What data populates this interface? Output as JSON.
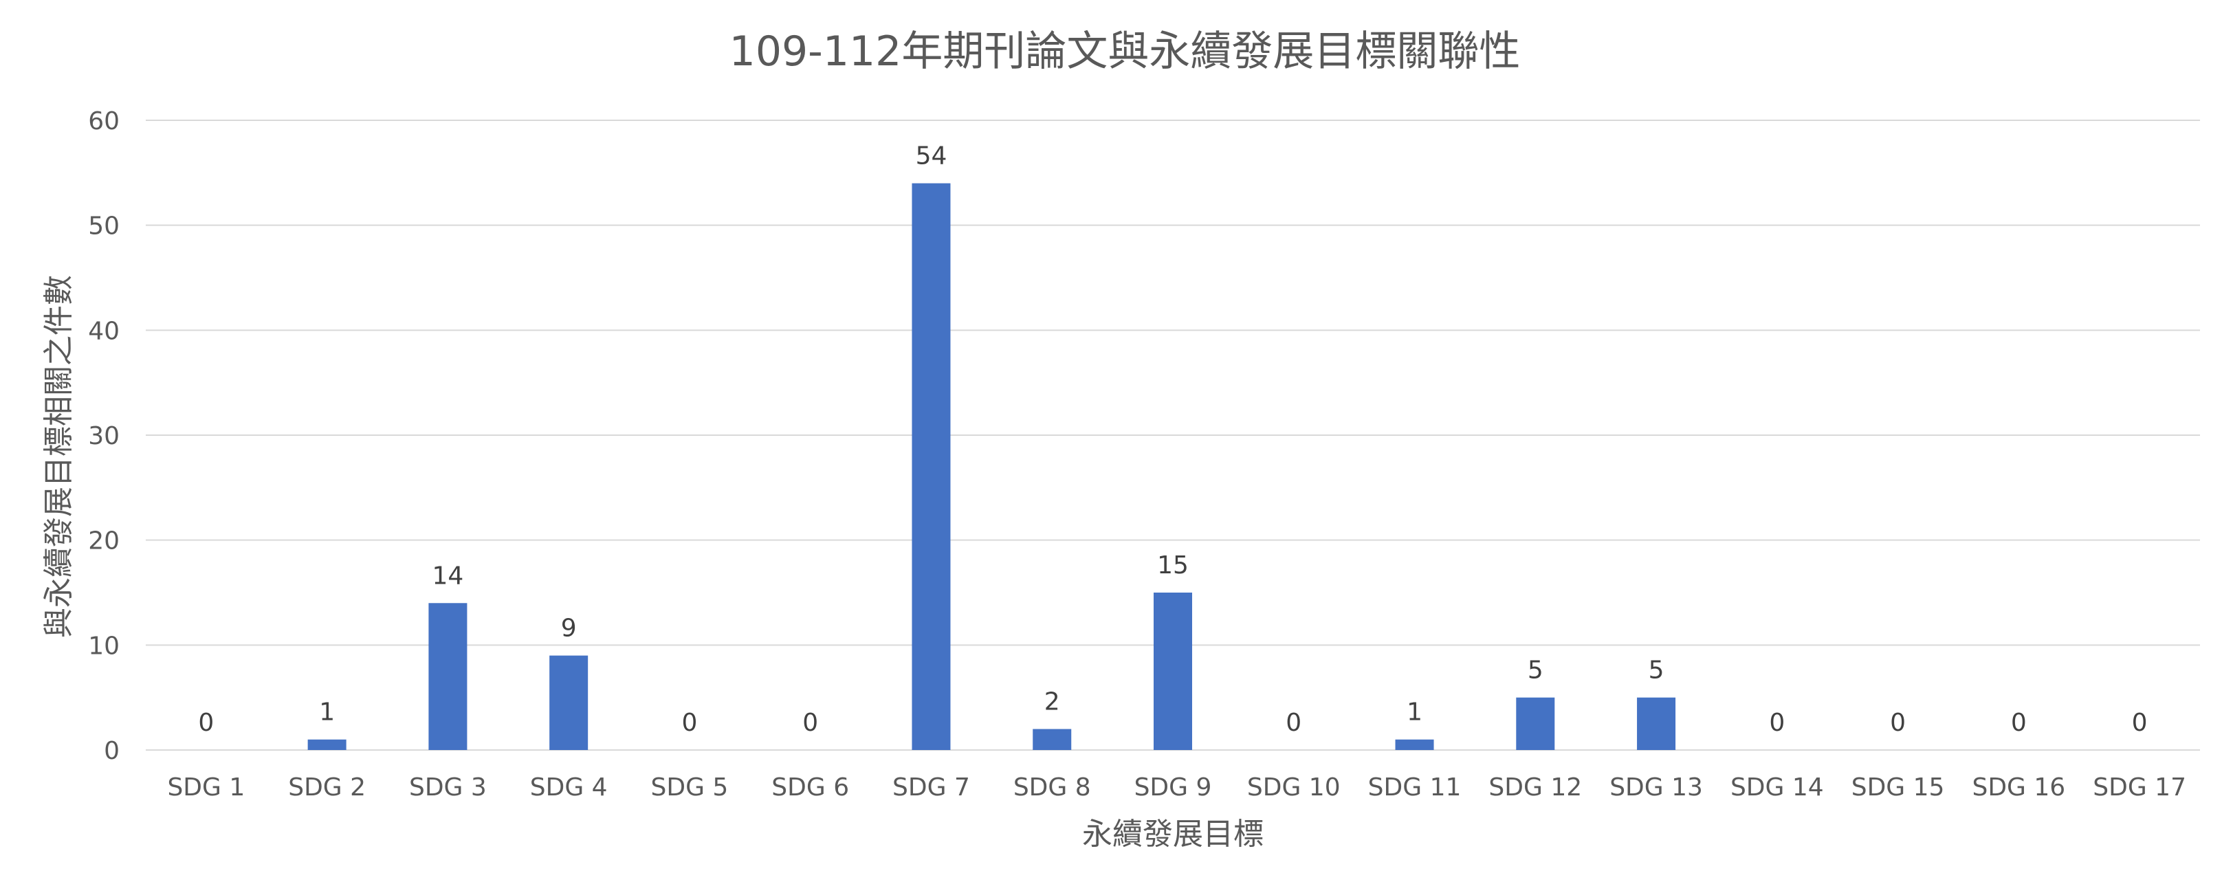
{
  "chart_data": {
    "type": "bar",
    "title": "109-112年期刊論文與永續發展目標關聯性",
    "xlabel": "永續發展目標",
    "ylabel": "與永續發展目標相關之件數",
    "categories": [
      "SDG 1",
      "SDG 2",
      "SDG 3",
      "SDG 4",
      "SDG 5",
      "SDG 6",
      "SDG 7",
      "SDG 8",
      "SDG 9",
      "SDG 10",
      "SDG 11",
      "SDG 12",
      "SDG 13",
      "SDG 14",
      "SDG 15",
      "SDG 16",
      "SDG 17"
    ],
    "values": [
      0,
      1,
      14,
      9,
      0,
      0,
      54,
      2,
      15,
      0,
      1,
      5,
      5,
      0,
      0,
      0,
      0
    ],
    "ylim": [
      0,
      60
    ],
    "yticks": [
      0,
      10,
      20,
      30,
      40,
      50,
      60
    ],
    "grid": true,
    "legend": "none",
    "data_labels": true,
    "colors": {
      "bar": "#4472c4",
      "grid": "#d9d9d9",
      "text": "#595959"
    }
  }
}
